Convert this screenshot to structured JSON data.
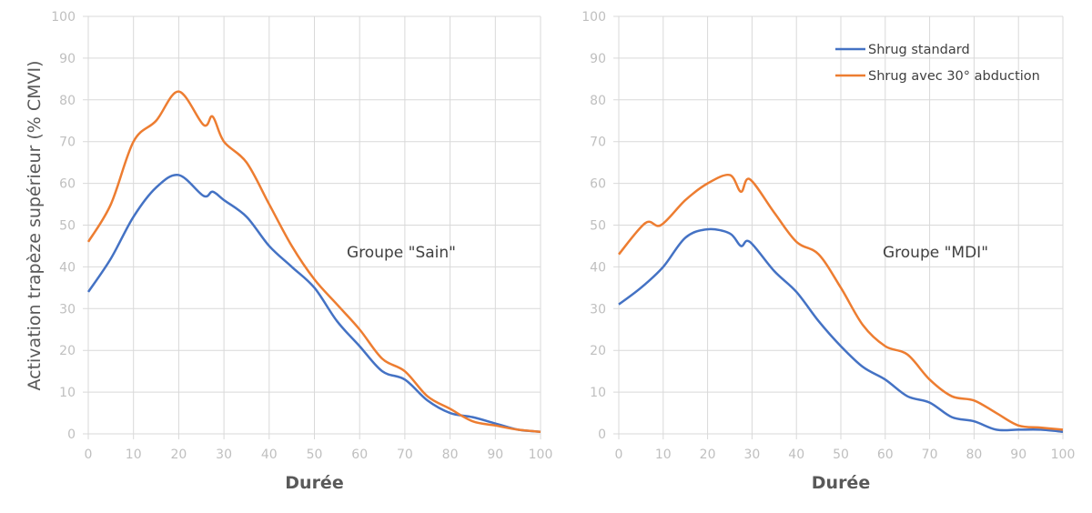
{
  "chart_data": [
    {
      "type": "line",
      "annotation": "Groupe \"Sain\"",
      "xlabel": "Durée",
      "ylabel": "Activation trapèze supérieur (% CMVI)",
      "xlim": [
        0,
        100
      ],
      "ylim": [
        0,
        100
      ],
      "xticks": [
        "0",
        "10",
        "20",
        "30",
        "40",
        "50",
        "60",
        "70",
        "80",
        "90",
        "100"
      ],
      "yticks": [
        "0",
        "10",
        "20",
        "30",
        "40",
        "50",
        "60",
        "70",
        "80",
        "90",
        "100"
      ],
      "grid": true,
      "series": [
        {
          "name": "Shrug standard",
          "color": "#4472c4",
          "x": [
            0,
            5,
            10,
            15,
            20,
            25.5,
            27.5,
            30,
            35,
            40,
            45,
            50,
            55,
            60,
            65,
            70,
            75,
            80,
            85,
            90,
            95,
            100
          ],
          "y": [
            34,
            42,
            52,
            59,
            62,
            57,
            58,
            56,
            52,
            45,
            40,
            35,
            27,
            21,
            15,
            13,
            8,
            5,
            4,
            2.5,
            1,
            0.5
          ]
        },
        {
          "name": "Shrug avec 30° abduction",
          "color": "#ed7d31",
          "x": [
            0,
            5,
            10,
            15,
            20,
            25.5,
            27.5,
            30,
            35,
            40,
            45,
            50,
            55,
            60,
            65,
            70,
            75,
            80,
            85,
            90,
            95,
            100
          ],
          "y": [
            46,
            55,
            70,
            75,
            82,
            74,
            76,
            70,
            65,
            55,
            45,
            37,
            31,
            25,
            18,
            15,
            9,
            6,
            3,
            2,
            1,
            0.5
          ]
        }
      ]
    },
    {
      "type": "line",
      "annotation": "Groupe \"MDI\"",
      "xlabel": "Durée",
      "xlim": [
        0,
        100
      ],
      "ylim": [
        0,
        100
      ],
      "xticks": [
        "0",
        "10",
        "20",
        "30",
        "40",
        "50",
        "60",
        "70",
        "80",
        "90",
        "100"
      ],
      "yticks": [
        "0",
        "10",
        "20",
        "30",
        "40",
        "50",
        "60",
        "70",
        "80",
        "90",
        "100"
      ],
      "grid": true,
      "legend": {
        "position": "top-right",
        "entries": [
          "Shrug standard",
          "Shrug avec 30° abduction"
        ]
      },
      "series": [
        {
          "name": "Shrug standard",
          "color": "#4472c4",
          "x": [
            0,
            5,
            10,
            15,
            20,
            25,
            27.5,
            29.5,
            35,
            40,
            45,
            50,
            55,
            60,
            65,
            70,
            75,
            80,
            85,
            90,
            95,
            100
          ],
          "y": [
            31,
            35,
            40,
            47,
            49,
            48,
            45,
            46,
            39,
            34,
            27,
            21,
            16,
            13,
            9,
            7.5,
            4,
            3,
            1,
            1,
            1,
            0.5
          ]
        },
        {
          "name": "Shrug avec 30° abduction",
          "color": "#ed7d31",
          "x": [
            0,
            6,
            9.5,
            15,
            20,
            25,
            27.5,
            29.5,
            35,
            40,
            45,
            50,
            55,
            60,
            65,
            70,
            75,
            80,
            85,
            90,
            95,
            100
          ],
          "y": [
            43,
            50.5,
            50,
            56,
            60,
            62,
            58,
            61,
            53,
            46,
            43,
            35,
            26,
            21,
            19,
            13,
            9,
            8,
            5,
            2,
            1.5,
            1
          ]
        }
      ]
    }
  ]
}
